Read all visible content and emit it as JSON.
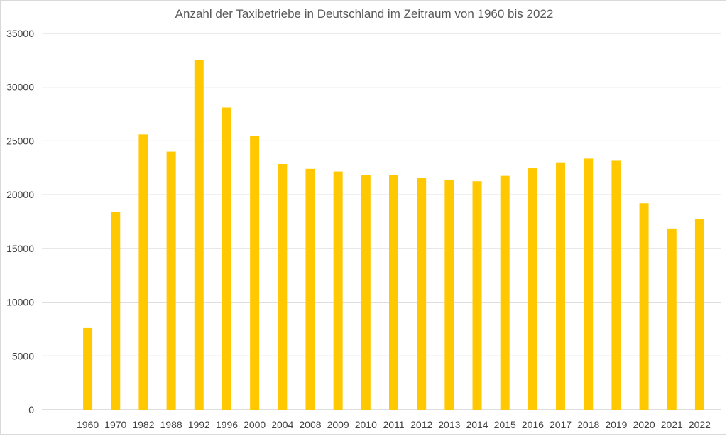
{
  "chart_data": {
    "type": "bar",
    "title": "Anzahl der Taxibetriebe in Deutschland im Zeitraum von 1960 bis 2022",
    "xlabel": "",
    "ylabel": "",
    "categories": [
      "1960",
      "1970",
      "1982",
      "1988",
      "1992",
      "1996",
      "2000",
      "2004",
      "2008",
      "2009",
      "2010",
      "2011",
      "2012",
      "2013",
      "2014",
      "2015",
      "2016",
      "2017",
      "2018",
      "2019",
      "2020",
      "2021",
      "2022"
    ],
    "values": [
      7600,
      18400,
      25600,
      24000,
      32500,
      28100,
      25450,
      22850,
      22400,
      22150,
      21850,
      21800,
      21550,
      21350,
      21250,
      21750,
      22450,
      23000,
      23350,
      23150,
      19200,
      16850,
      17700
    ],
    "ylim": [
      0,
      35000
    ],
    "yticks": [
      0,
      5000,
      10000,
      15000,
      20000,
      25000,
      30000,
      35000
    ],
    "grid": true,
    "legend": "none",
    "bar_color": "#FFC800",
    "grid_color": "#d9d9d9"
  }
}
